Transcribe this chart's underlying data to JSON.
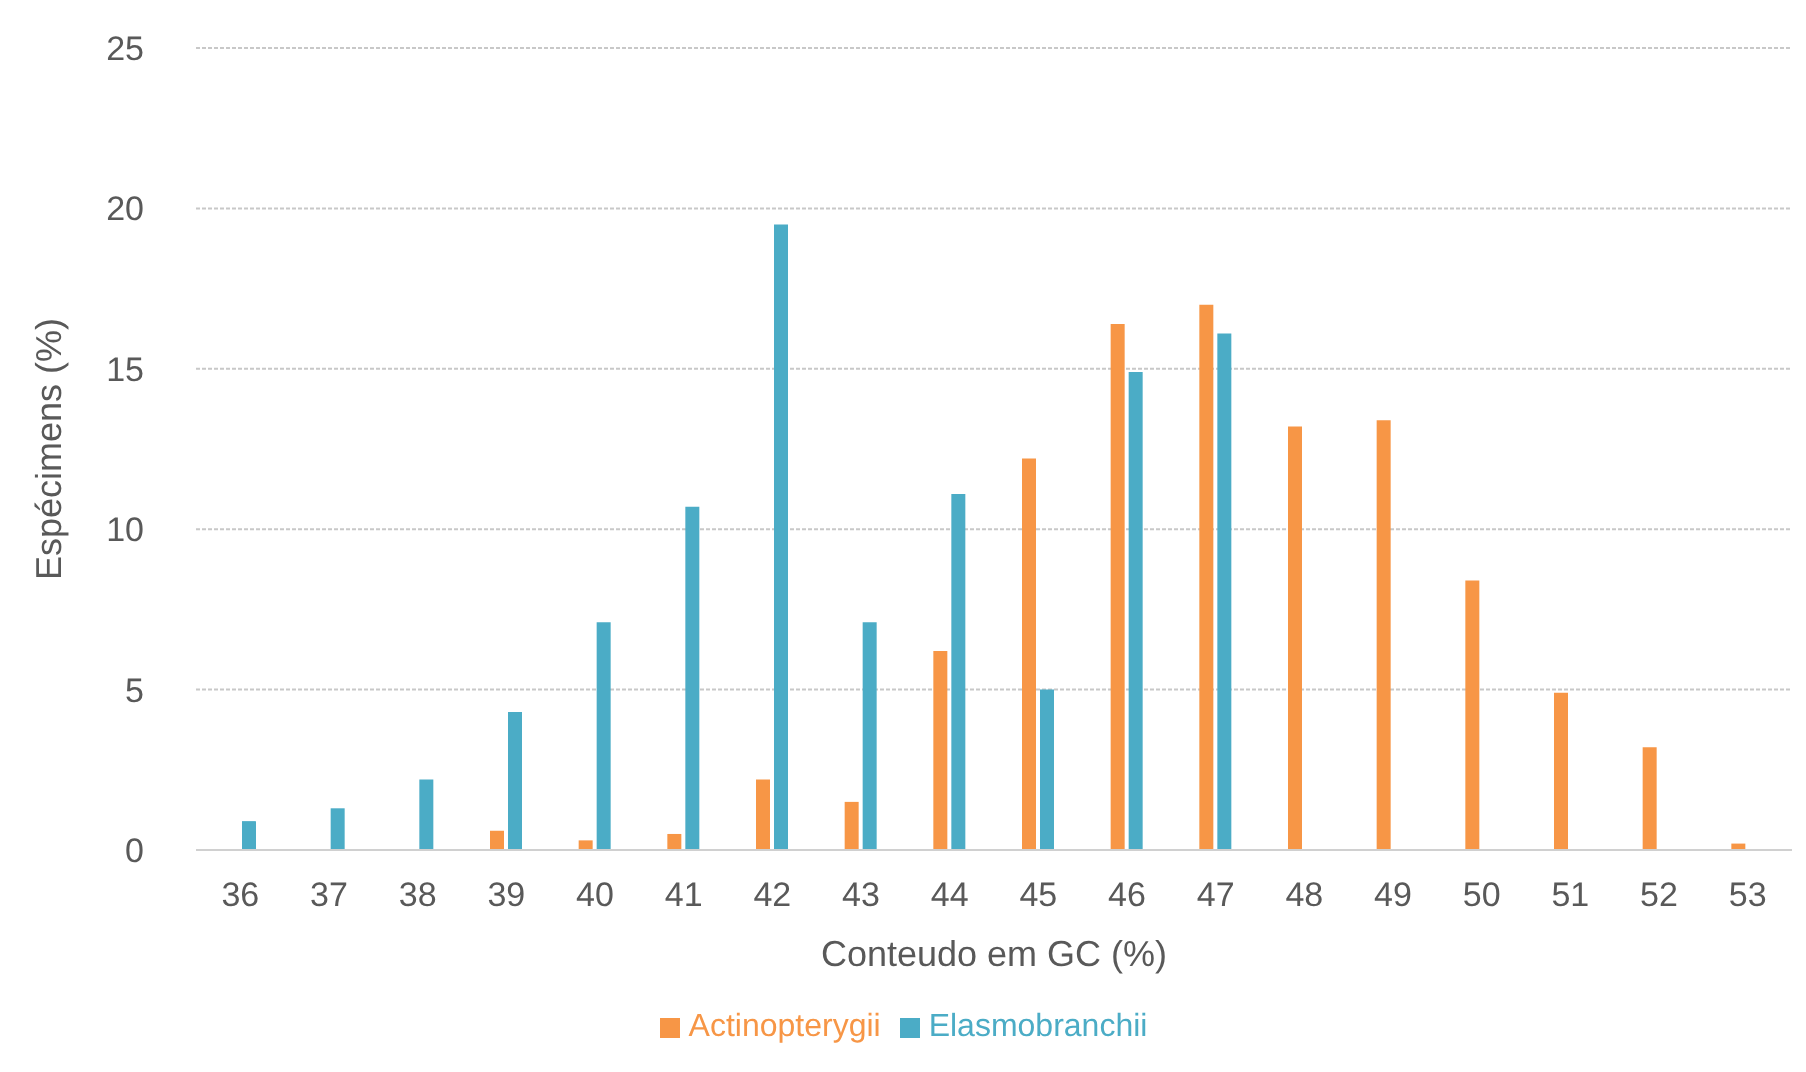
{
  "chart_data": {
    "type": "bar",
    "xlabel": "Conteudo em GC (%)",
    "ylabel": "Espécimens (%)",
    "categories": [
      "36",
      "37",
      "38",
      "39",
      "40",
      "41",
      "42",
      "43",
      "44",
      "45",
      "46",
      "47",
      "48",
      "49",
      "50",
      "51",
      "52",
      "53"
    ],
    "series": [
      {
        "name": "Actinopterygii",
        "color": "#f79646",
        "values": [
          0,
          0,
          0,
          0.6,
          0.3,
          0.5,
          2.2,
          1.5,
          6.2,
          12.2,
          16.4,
          17.0,
          13.2,
          13.4,
          8.4,
          4.9,
          3.2,
          0.2
        ]
      },
      {
        "name": "Elasmobranchii",
        "color": "#4bacc6",
        "values": [
          0.9,
          1.3,
          2.2,
          4.3,
          7.1,
          10.7,
          19.5,
          7.1,
          11.1,
          5.0,
          14.9,
          16.1,
          0,
          0,
          0,
          0,
          0,
          0
        ]
      }
    ],
    "ylim": [
      0,
      25
    ],
    "yticks": [
      0,
      5,
      10,
      15,
      20,
      25
    ],
    "grid": "y",
    "legend": "bottom"
  }
}
